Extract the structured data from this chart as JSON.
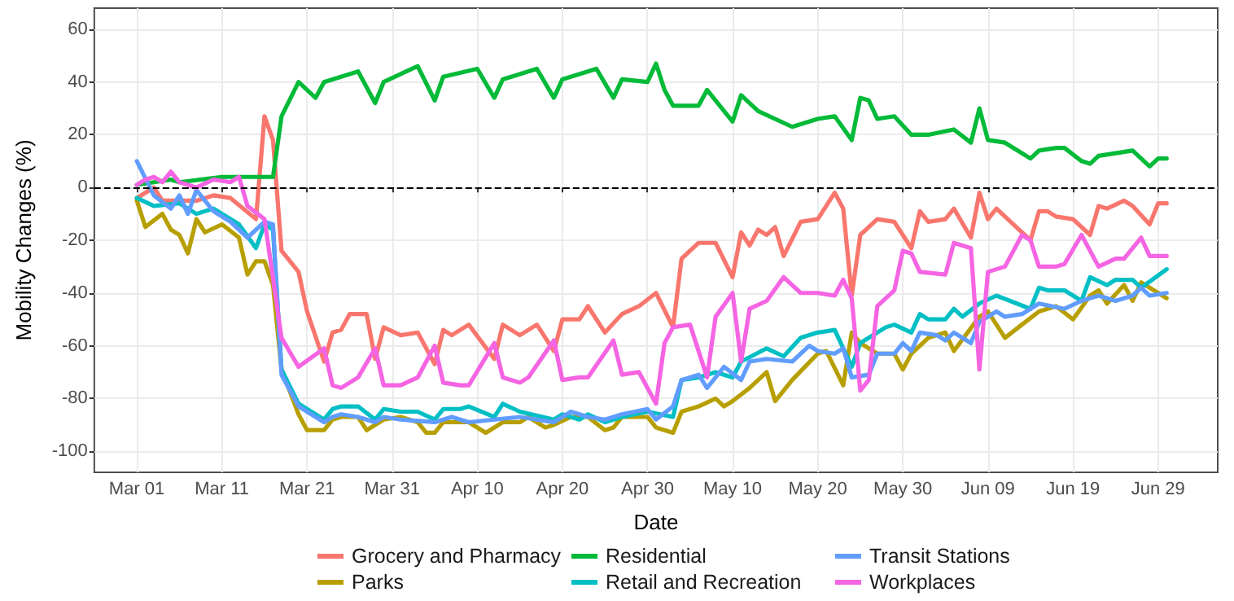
{
  "chart_data": {
    "type": "line",
    "xlabel": "Date",
    "ylabel": "Mobility Changes (%)",
    "xlim": [
      "--02-24",
      "--07-06"
    ],
    "xticks": [
      {
        "value": "--03-01",
        "label": "Mar 01"
      },
      {
        "value": "--03-11",
        "label": "Mar 11"
      },
      {
        "value": "--03-21",
        "label": "Mar 21"
      },
      {
        "value": "--03-31",
        "label": "Mar 31"
      },
      {
        "value": "--04-10",
        "label": "Apr 10"
      },
      {
        "value": "--04-20",
        "label": "Apr 20"
      },
      {
        "value": "--04-30",
        "label": "Apr 30"
      },
      {
        "value": "--05-10",
        "label": "May 10"
      },
      {
        "value": "--05-20",
        "label": "May 20"
      },
      {
        "value": "--05-30",
        "label": "May 30"
      },
      {
        "value": "--06-09",
        "label": "Jun 09"
      },
      {
        "value": "--06-19",
        "label": "Jun 19"
      },
      {
        "value": "--06-29",
        "label": "Jun 29"
      }
    ],
    "ylim": [
      -108,
      68
    ],
    "yticks": [
      -100,
      -80,
      -60,
      -40,
      -20,
      0,
      20,
      40,
      60
    ],
    "grid": true,
    "legend": "bottom",
    "marker": "none",
    "line_style": "solid",
    "ref_lines": [
      {
        "axis": "y",
        "value": 0,
        "color": "#000000",
        "line_style": "dashed"
      }
    ],
    "series": [
      {
        "name": "Grocery and Pharmacy",
        "color": "#f8766d",
        "x": [
          "--03-01",
          "--03-03",
          "--03-04",
          "--03-08",
          "--03-10",
          "--03-12",
          "--03-15",
          "--03-16",
          "--03-17",
          "--03-18",
          "--03-20",
          "--03-21",
          "--03-23",
          "--03-24",
          "--03-25",
          "--03-26",
          "--03-28",
          "--03-29",
          "--03-30",
          "--04-01",
          "--04-03",
          "--04-05",
          "--04-06",
          "--04-07",
          "--04-09",
          "--04-12",
          "--04-13",
          "--04-15",
          "--04-17",
          "--04-19",
          "--04-20",
          "--04-22",
          "--04-23",
          "--04-25",
          "--04-27",
          "--04-29",
          "--05-01",
          "--05-03",
          "--05-04",
          "--05-06",
          "--05-08",
          "--05-10",
          "--05-11",
          "--05-12",
          "--05-13",
          "--05-14",
          "--05-15",
          "--05-16",
          "--05-18",
          "--05-20",
          "--05-22",
          "--05-23",
          "--05-24",
          "--05-25",
          "--05-27",
          "--05-29",
          "--05-31",
          "--06-01",
          "--06-02",
          "--06-04",
          "--06-05",
          "--06-07",
          "--06-08",
          "--06-09",
          "--06-10",
          "--06-12",
          "--06-14",
          "--06-15",
          "--06-16",
          "--06-17",
          "--06-19",
          "--06-21",
          "--06-22",
          "--06-23",
          "--06-25",
          "--06-26",
          "--06-28",
          "--06-29",
          "--06-30"
        ],
        "values": [
          -4,
          0,
          -5,
          -5,
          -3,
          -4,
          -12,
          27,
          18,
          -24,
          -32,
          -47,
          -66,
          -55,
          -54,
          -48,
          -48,
          -65,
          -53,
          -56,
          -55,
          -67,
          -54,
          -56,
          -52,
          -65,
          -52,
          -56,
          -52,
          -62,
          -50,
          -50,
          -45,
          -55,
          -48,
          -45,
          -40,
          -53,
          -27,
          -21,
          -21,
          -34,
          -17,
          -22,
          -16,
          -18,
          -15,
          -26,
          -13,
          -12,
          -2,
          -8,
          -41,
          -18,
          -12,
          -13,
          -23,
          -9,
          -13,
          -12,
          -8,
          -19,
          -2,
          -12,
          -8,
          -14,
          -20,
          -9,
          -9,
          -11,
          -12,
          -18,
          -7,
          -8,
          -5,
          -7,
          -14,
          -6,
          -6
        ]
      },
      {
        "name": "Parks",
        "color": "#b79f00",
        "x": [
          "--03-01",
          "--03-02",
          "--03-04",
          "--03-05",
          "--03-06",
          "--03-07",
          "--03-08",
          "--03-09",
          "--03-11",
          "--03-13",
          "--03-14",
          "--03-15",
          "--03-16",
          "--03-17",
          "--03-18",
          "--03-20",
          "--03-21",
          "--03-23",
          "--03-24",
          "--03-25",
          "--03-27",
          "--03-28",
          "--03-30",
          "--04-01",
          "--04-03",
          "--04-04",
          "--04-05",
          "--04-06",
          "--04-08",
          "--04-09",
          "--04-11",
          "--04-13",
          "--04-15",
          "--04-16",
          "--04-18",
          "--04-19",
          "--04-21",
          "--04-23",
          "--04-25",
          "--04-26",
          "--04-27",
          "--04-30",
          "--05-01",
          "--05-03",
          "--05-04",
          "--05-06",
          "--05-08",
          "--05-09",
          "--05-10",
          "--05-12",
          "--05-14",
          "--05-15",
          "--05-17",
          "--05-20",
          "--05-21",
          "--05-23",
          "--05-24",
          "--05-25",
          "--05-27",
          "--05-29",
          "--05-30",
          "--05-31",
          "--06-02",
          "--06-04",
          "--06-05",
          "--06-08",
          "--06-09",
          "--06-11",
          "--06-13",
          "--06-15",
          "--06-17",
          "--06-19",
          "--06-21",
          "--06-22",
          "--06-23",
          "--06-25",
          "--06-26",
          "--06-27",
          "--06-30"
        ],
        "values": [
          -5,
          -15,
          -10,
          -16,
          -18,
          -25,
          -12,
          -17,
          -14,
          -19,
          -33,
          -28,
          -28,
          -37,
          -69,
          -86,
          -92,
          -92,
          -88,
          -87,
          -87,
          -92,
          -88,
          -87,
          -89,
          -93,
          -93,
          -89,
          -89,
          -89,
          -93,
          -89,
          -89,
          -87,
          -91,
          -90,
          -87,
          -87,
          -92,
          -91,
          -87,
          -87,
          -91,
          -93,
          -85,
          -83,
          -80,
          -83,
          -81,
          -76,
          -70,
          -81,
          -73,
          -63,
          -62,
          -75,
          -55,
          -59,
          -63,
          -63,
          -69,
          -63,
          -57,
          -55,
          -62,
          -49,
          -47,
          -57,
          -52,
          -47,
          -45,
          -50,
          -41,
          -39,
          -44,
          -37,
          -43,
          -36,
          -42
        ]
      },
      {
        "name": "Residential",
        "color": "#00ba38",
        "x": [
          "--03-01",
          "--03-05",
          "--03-06",
          "--03-11",
          "--03-17",
          "--03-18",
          "--03-20",
          "--03-22",
          "--03-23",
          "--03-27",
          "--03-29",
          "--03-30",
          "--04-03",
          "--04-05",
          "--04-06",
          "--04-10",
          "--04-12",
          "--04-13",
          "--04-17",
          "--04-19",
          "--04-20",
          "--04-24",
          "--04-26",
          "--04-27",
          "--04-30",
          "--05-01",
          "--05-02",
          "--05-03",
          "--05-06",
          "--05-07",
          "--05-10",
          "--05-11",
          "--05-13",
          "--05-17",
          "--05-20",
          "--05-22",
          "--05-24",
          "--05-25",
          "--05-26",
          "--05-27",
          "--05-29",
          "--05-31",
          "--06-02",
          "--06-05",
          "--06-07",
          "--06-08",
          "--06-09",
          "--06-11",
          "--06-14",
          "--06-15",
          "--06-17",
          "--06-18",
          "--06-20",
          "--06-21",
          "--06-22",
          "--06-26",
          "--06-28",
          "--06-29",
          "--06-30"
        ],
        "values": [
          1,
          3,
          2,
          4,
          4,
          27,
          40,
          34,
          40,
          44,
          32,
          40,
          46,
          33,
          42,
          45,
          34,
          41,
          45,
          34,
          41,
          45,
          34,
          41,
          40,
          47,
          37,
          31,
          31,
          37,
          25,
          35,
          29,
          23,
          26,
          27,
          18,
          34,
          33,
          26,
          27,
          20,
          20,
          22,
          17,
          30,
          18,
          17,
          11,
          14,
          15,
          15,
          10,
          9,
          12,
          14,
          8,
          11,
          11
        ]
      },
      {
        "name": "Retail and Recreation",
        "color": "#00bfc4",
        "x": [
          "--03-01",
          "--03-03",
          "--03-06",
          "--03-08",
          "--03-10",
          "--03-13",
          "--03-15",
          "--03-16",
          "--03-17",
          "--03-18",
          "--03-20",
          "--03-23",
          "--03-24",
          "--03-25",
          "--03-27",
          "--03-29",
          "--03-30",
          "--04-01",
          "--04-03",
          "--04-05",
          "--04-06",
          "--04-08",
          "--04-09",
          "--04-12",
          "--04-13",
          "--04-15",
          "--04-19",
          "--04-20",
          "--04-22",
          "--04-23",
          "--04-25",
          "--04-27",
          "--04-30",
          "--05-03",
          "--05-04",
          "--05-06",
          "--05-08",
          "--05-10",
          "--05-11",
          "--05-14",
          "--05-16",
          "--05-18",
          "--05-20",
          "--05-22",
          "--05-24",
          "--05-25",
          "--05-28",
          "--05-29",
          "--05-31",
          "--06-01",
          "--06-02",
          "--06-04",
          "--06-05",
          "--06-06",
          "--06-08",
          "--06-10",
          "--06-14",
          "--06-15",
          "--06-16",
          "--06-18",
          "--06-20",
          "--06-21",
          "--06-23",
          "--06-24",
          "--06-26",
          "--06-27",
          "--06-30"
        ],
        "values": [
          -4,
          -7,
          -6,
          -10,
          -8,
          -14,
          -23,
          -14,
          -16,
          -69,
          -82,
          -88,
          -84,
          -83,
          -83,
          -88,
          -84,
          -85,
          -85,
          -88,
          -84,
          -84,
          -83,
          -87,
          -82,
          -85,
          -88,
          -86,
          -88,
          -86,
          -89,
          -87,
          -85,
          -87,
          -73,
          -72,
          -70,
          -72,
          -66,
          -61,
          -64,
          -57,
          -55,
          -54,
          -68,
          -59,
          -53,
          -52,
          -55,
          -48,
          -50,
          -50,
          -46,
          -49,
          -44,
          -41,
          -46,
          -38,
          -39,
          -39,
          -43,
          -34,
          -37,
          -35,
          -35,
          -38,
          -31
        ]
      },
      {
        "name": "Transit Stations",
        "color": "#619cff",
        "x": [
          "--03-01",
          "--03-03",
          "--03-05",
          "--03-06",
          "--03-07",
          "--03-08",
          "--03-10",
          "--03-12",
          "--03-14",
          "--03-16",
          "--03-17",
          "--03-18",
          "--03-20",
          "--03-23",
          "--03-24",
          "--03-25",
          "--03-27",
          "--03-29",
          "--03-30",
          "--04-01",
          "--04-05",
          "--04-07",
          "--04-08",
          "--04-09",
          "--04-12",
          "--04-15",
          "--04-19",
          "--04-21",
          "--04-23",
          "--04-25",
          "--04-27",
          "--04-30",
          "--05-01",
          "--05-03",
          "--05-04",
          "--05-06",
          "--05-07",
          "--05-09",
          "--05-11",
          "--05-12",
          "--05-14",
          "--05-17",
          "--05-19",
          "--05-20",
          "--05-22",
          "--05-23",
          "--05-24",
          "--05-26",
          "--05-27",
          "--05-29",
          "--05-30",
          "--05-31",
          "--06-01",
          "--06-03",
          "--06-04",
          "--06-05",
          "--06-07",
          "--06-08",
          "--06-10",
          "--06-11",
          "--06-13",
          "--06-15",
          "--06-18",
          "--06-20",
          "--06-22",
          "--06-24",
          "--06-26",
          "--06-27",
          "--06-28",
          "--06-30"
        ],
        "values": [
          10,
          -3,
          -8,
          -3,
          -10,
          -1,
          -9,
          -13,
          -19,
          -13,
          -14,
          -71,
          -83,
          -89,
          -87,
          -86,
          -87,
          -89,
          -87,
          -88,
          -89,
          -87,
          -88,
          -89,
          -88,
          -87,
          -89,
          -85,
          -87,
          -88,
          -86,
          -84,
          -88,
          -83,
          -73,
          -71,
          -76,
          -68,
          -73,
          -66,
          -65,
          -66,
          -60,
          -62,
          -63,
          -61,
          -72,
          -71,
          -63,
          -63,
          -59,
          -62,
          -55,
          -56,
          -58,
          -55,
          -59,
          -51,
          -47,
          -49,
          -48,
          -44,
          -46,
          -43,
          -41,
          -43,
          -41,
          -38,
          -41,
          -40
        ]
      },
      {
        "name": "Workplaces",
        "color": "#f564e3",
        "x": [
          "--03-01",
          "--03-02",
          "--03-03",
          "--03-04",
          "--03-05",
          "--03-06",
          "--03-08",
          "--03-10",
          "--03-12",
          "--03-13",
          "--03-14",
          "--03-16",
          "--03-18",
          "--03-20",
          "--03-23",
          "--03-24",
          "--03-25",
          "--03-27",
          "--03-29",
          "--03-30",
          "--04-01",
          "--04-03",
          "--04-05",
          "--04-06",
          "--04-08",
          "--04-09",
          "--04-12",
          "--04-13",
          "--04-15",
          "--04-16",
          "--04-19",
          "--04-20",
          "--04-22",
          "--04-23",
          "--04-26",
          "--04-27",
          "--04-29",
          "--05-01",
          "--05-02",
          "--05-03",
          "--05-05",
          "--05-07",
          "--05-08",
          "--05-10",
          "--05-11",
          "--05-12",
          "--05-14",
          "--05-16",
          "--05-18",
          "--05-20",
          "--05-22",
          "--05-23",
          "--05-24",
          "--05-25",
          "--05-26",
          "--05-27",
          "--05-29",
          "--05-30",
          "--05-31",
          "--06-01",
          "--06-04",
          "--06-05",
          "--06-07",
          "--06-08",
          "--06-09",
          "--06-11",
          "--06-13",
          "--06-14",
          "--06-15",
          "--06-17",
          "--06-18",
          "--06-20",
          "--06-22",
          "--06-24",
          "--06-25",
          "--06-27",
          "--06-28",
          "--06-30"
        ],
        "values": [
          1,
          3,
          4,
          2,
          6,
          2,
          0,
          3,
          2,
          4,
          -7,
          -12,
          -57,
          -68,
          -61,
          -75,
          -76,
          -72,
          -61,
          -75,
          -75,
          -72,
          -60,
          -74,
          -75,
          -75,
          -59,
          -72,
          -74,
          -72,
          -58,
          -73,
          -72,
          -72,
          -58,
          -71,
          -70,
          -82,
          -59,
          -53,
          -52,
          -72,
          -49,
          -40,
          -66,
          -46,
          -43,
          -34,
          -40,
          -40,
          -41,
          -35,
          -42,
          -77,
          -73,
          -45,
          -39,
          -24,
          -25,
          -32,
          -33,
          -21,
          -23,
          -69,
          -32,
          -30,
          -18,
          -20,
          -30,
          -30,
          -29,
          -18,
          -30,
          -27,
          -27,
          -19,
          -26,
          -26
        ]
      }
    ]
  }
}
